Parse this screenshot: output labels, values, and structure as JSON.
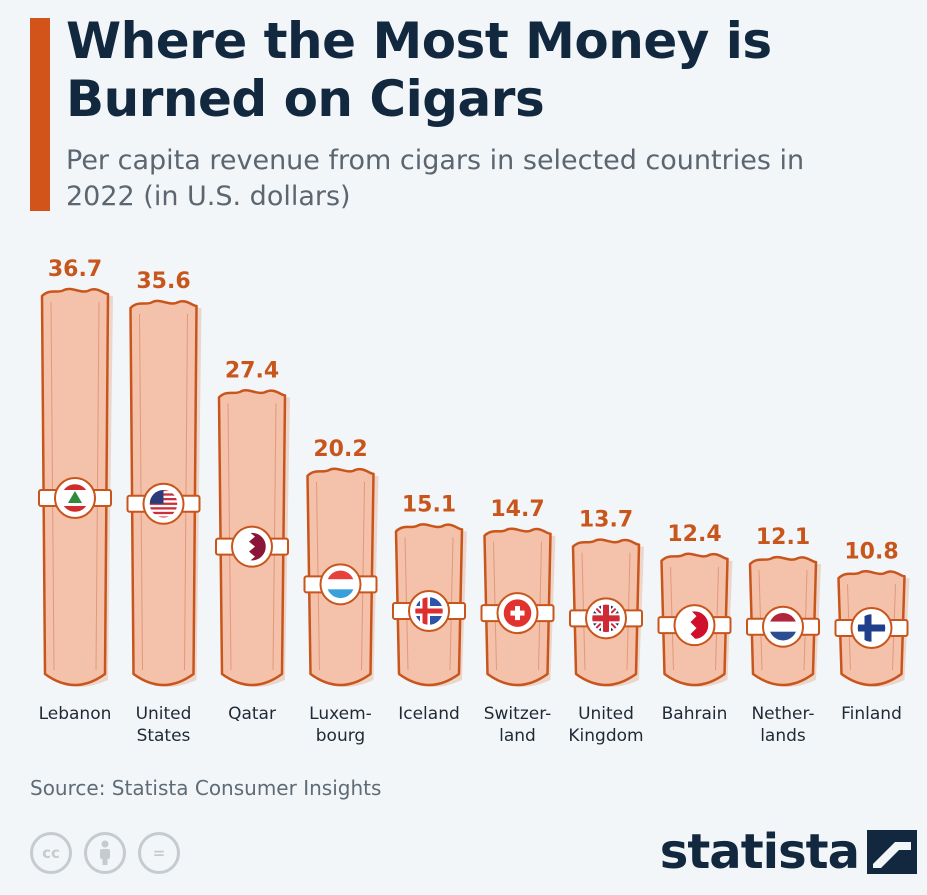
{
  "header": {
    "title": "Where the Most Money is Burned on Cigars",
    "subtitle": "Per capita revenue from cigars in selected countries in 2022 (in U.S. dollars)"
  },
  "chart_data": {
    "type": "bar",
    "categories": [
      "Lebanon",
      "United States",
      "Qatar",
      "Luxembourg",
      "Iceland",
      "Switzerland",
      "United Kingdom",
      "Bahrain",
      "Netherlands",
      "Finland"
    ],
    "category_labels": [
      [
        "Lebanon"
      ],
      [
        "United",
        "States"
      ],
      [
        "Qatar"
      ],
      [
        "Luxem-",
        "bourg"
      ],
      [
        "Iceland"
      ],
      [
        "Switzer-",
        "land"
      ],
      [
        "United",
        "Kingdom"
      ],
      [
        "Bahrain"
      ],
      [
        "Nether-",
        "lands"
      ],
      [
        "Finland"
      ]
    ],
    "value_labels": [
      "36.7",
      "35.6",
      "27.4",
      "20.2",
      "15.1",
      "14.7",
      "13.7",
      "12.4",
      "12.1",
      "10.8"
    ],
    "values": [
      36.7,
      35.6,
      27.4,
      20.2,
      15.1,
      14.7,
      13.7,
      12.4,
      12.1,
      10.8
    ],
    "flag_icons": [
      "lebanon-flag-icon",
      "usa-flag-icon",
      "qatar-flag-icon",
      "luxembourg-flag-icon",
      "iceland-flag-icon",
      "switzerland-flag-icon",
      "uk-flag-icon",
      "bahrain-flag-icon",
      "netherlands-flag-icon",
      "finland-flag-icon"
    ],
    "bar_shape": "cigar",
    "colors": {
      "bar_fill": "#f4c1ab",
      "bar_stroke": "#c8561c",
      "value_label": "#c8561c",
      "accent": "#d2541b",
      "title": "#12283f"
    },
    "grid": false,
    "legend": "none"
  },
  "footer": {
    "source": "Source: Statista Consumer Insights",
    "license_icons": [
      "cc-icon",
      "attribution-icon",
      "no-derivatives-icon"
    ],
    "license_text": {
      "cc": "cc",
      "nd": "="
    },
    "brand": "statista",
    "brand_icon": "statista-logo-icon"
  }
}
